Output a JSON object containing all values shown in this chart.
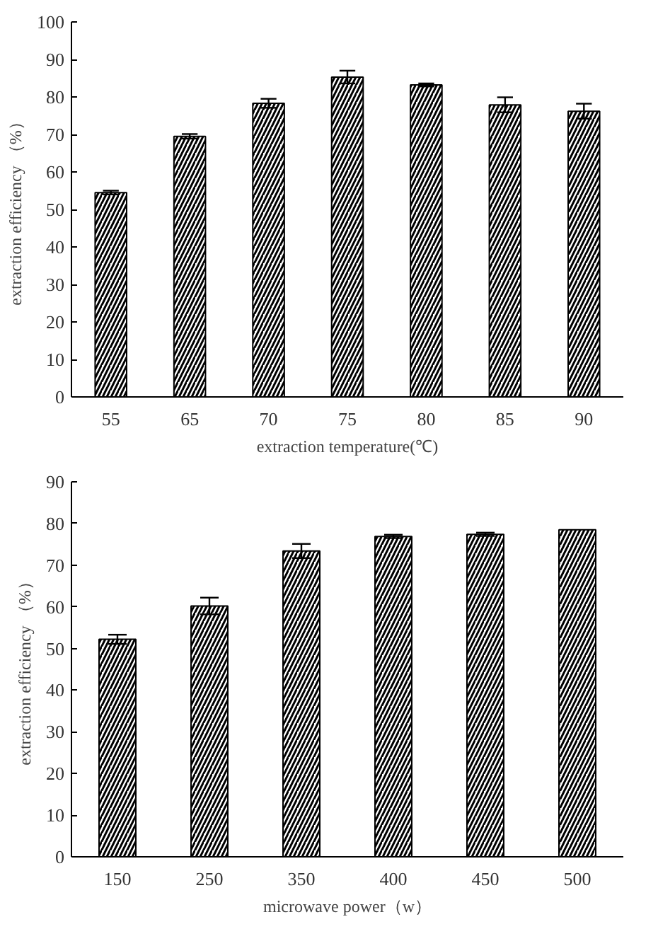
{
  "chart_data": [
    {
      "type": "bar",
      "xlabel": "extraction temperature(℃)",
      "ylabel": "extraction efficiency （%）",
      "categories": [
        "55",
        "65",
        "70",
        "75",
        "80",
        "85",
        "90"
      ],
      "values": [
        54.5,
        69.5,
        78.3,
        85.3,
        83.2,
        77.9,
        76.2
      ],
      "errors": [
        0.5,
        0.6,
        1.2,
        1.7,
        0.4,
        2.0,
        2.0
      ],
      "color": "#000000",
      "ylim": [
        0,
        100
      ],
      "yticks": [
        0,
        10,
        20,
        30,
        40,
        50,
        60,
        70,
        80,
        90,
        100
      ],
      "grid": false
    },
    {
      "type": "bar",
      "xlabel": "microwave power（w）",
      "ylabel": "extraction efficiency （%）",
      "categories": [
        "150",
        "250",
        "350",
        "400",
        "450",
        "500"
      ],
      "values": [
        52.2,
        60.2,
        73.4,
        76.9,
        77.4,
        78.5
      ],
      "errors": [
        1.1,
        2.0,
        1.7,
        0.4,
        0.4,
        null
      ],
      "color": "#000000",
      "ylim": [
        0,
        90
      ],
      "yticks": [
        0,
        10,
        20,
        30,
        40,
        50,
        60,
        70,
        80,
        90
      ],
      "grid": false
    }
  ]
}
